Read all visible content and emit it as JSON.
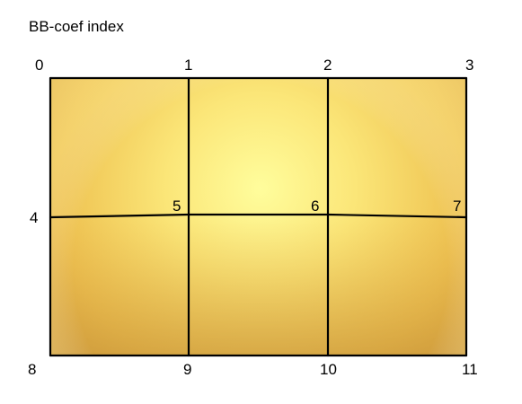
{
  "title": "BB-coef index",
  "labels": [
    "0",
    "1",
    "2",
    "3",
    "4",
    "5",
    "6",
    "7",
    "8",
    "9",
    "10",
    "11"
  ],
  "colors": {
    "surface_light": "#fffb9a",
    "surface_mid": "#f6d257",
    "surface_dark": "#d8a53c",
    "grid_line": "#000000"
  }
}
